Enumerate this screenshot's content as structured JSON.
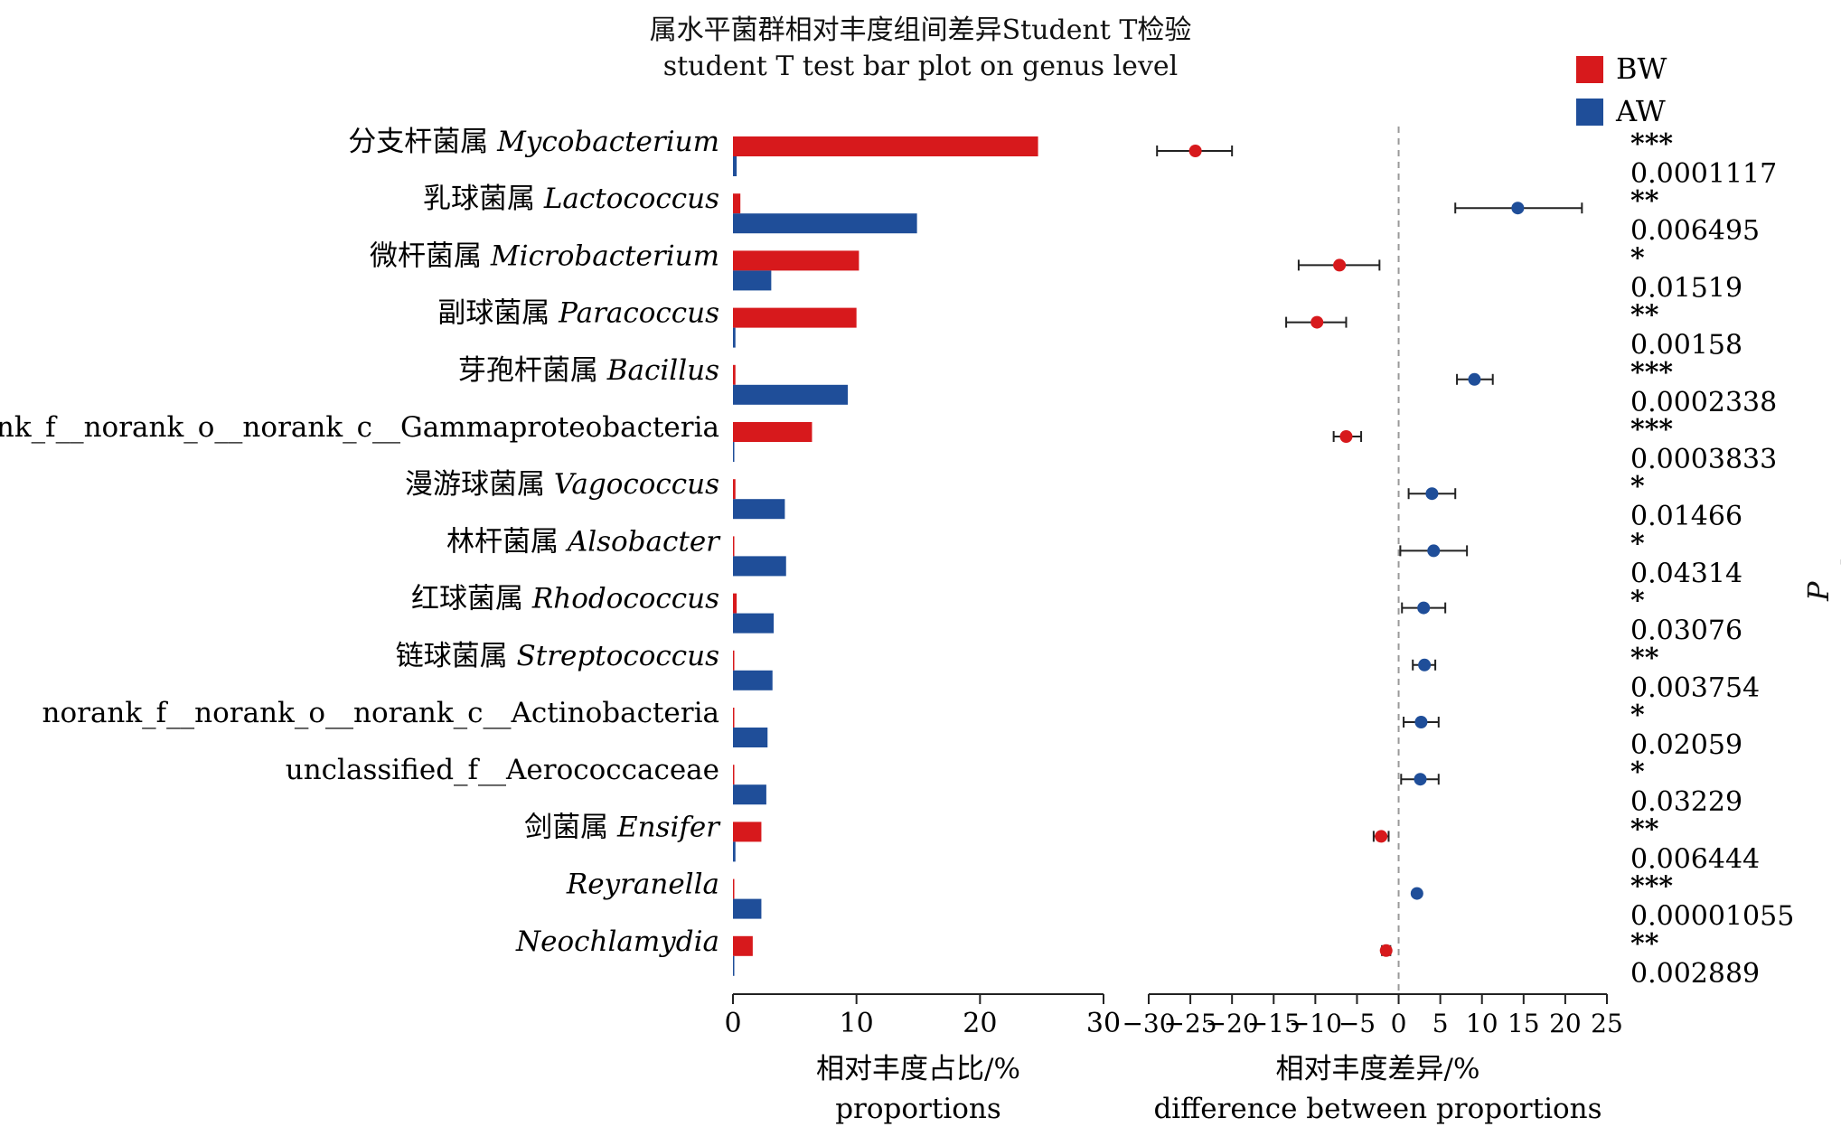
{
  "chart_data": {
    "type": "bar",
    "title": "属水平菌群相对丰度组间差异Student T检验",
    "subtitle": "student T test bar plot on genus level",
    "legend": {
      "placement": "top-right",
      "entries": [
        {
          "name": "BW",
          "color": "#d7191c"
        },
        {
          "name": "AW",
          "color": "#1f4e99"
        }
      ]
    },
    "categories": [
      {
        "cn": "分支杆菌属",
        "latin": "Mycobacterium"
      },
      {
        "cn": "乳球菌属",
        "latin": "Lactococcus"
      },
      {
        "cn": "微杆菌属",
        "latin": "Microbacterium"
      },
      {
        "cn": "副球菌属",
        "latin": "Paracoccus"
      },
      {
        "cn": "芽孢杆菌属",
        "latin": "Bacillus"
      },
      {
        "cn": "",
        "latin": "norank_f__norank_o__norank_c__Gammaproteobacteria",
        "plain": true
      },
      {
        "cn": "漫游球菌属",
        "latin": "Vagococcus"
      },
      {
        "cn": "林杆菌属",
        "latin": "Alsobacter"
      },
      {
        "cn": "红球菌属",
        "latin": "Rhodococcus"
      },
      {
        "cn": "链球菌属",
        "latin": "Streptococcus"
      },
      {
        "cn": "",
        "latin": "norank_f__norank_o__norank_c__Actinobacteria",
        "plain": true
      },
      {
        "cn": "",
        "latin": "unclassified_f__Aerococcaceae",
        "plain": true
      },
      {
        "cn": "剑菌属",
        "latin": "Ensifer"
      },
      {
        "cn": "",
        "latin": "Reyranella"
      },
      {
        "cn": "",
        "latin": "Neochlamydia"
      }
    ],
    "series": [
      {
        "name": "BW",
        "color": "#d7191c",
        "values": [
          24.7,
          0.6,
          10.2,
          10.0,
          0.2,
          6.4,
          0.2,
          0.1,
          0.3,
          0.1,
          0.1,
          0.1,
          2.3,
          0.1,
          1.6
        ]
      },
      {
        "name": "AW",
        "color": "#1f4e99",
        "values": [
          0.3,
          14.9,
          3.1,
          0.2,
          9.3,
          0.1,
          4.2,
          4.3,
          3.3,
          3.2,
          2.8,
          2.7,
          0.2,
          2.3,
          0.1
        ]
      }
    ],
    "left_axis": {
      "xlim": [
        0,
        30
      ],
      "ticks": [
        0,
        10,
        20,
        30
      ],
      "xlabel_cn": "相对丰度占比/%",
      "xlabel_en": "proportions"
    },
    "right_axis": {
      "xlim": [
        -30,
        25
      ],
      "ticks": [
        -30,
        -25,
        -20,
        -15,
        -10,
        -5,
        0,
        5,
        10,
        15,
        20,
        25
      ],
      "xlabel_cn": "相对丰度差异/%",
      "xlabel_en": "difference between proportions"
    },
    "differences": [
      {
        "value": -24.4,
        "ci": [
          -29.0,
          -20.0
        ],
        "group": "BW"
      },
      {
        "value": 14.3,
        "ci": [
          6.8,
          22.0
        ],
        "group": "AW"
      },
      {
        "value": -7.1,
        "ci": [
          -12.0,
          -2.3
        ],
        "group": "BW"
      },
      {
        "value": -9.8,
        "ci": [
          -13.5,
          -6.3
        ],
        "group": "BW"
      },
      {
        "value": 9.1,
        "ci": [
          7.0,
          11.3
        ],
        "group": "AW"
      },
      {
        "value": -6.3,
        "ci": [
          -7.8,
          -4.5
        ],
        "group": "BW"
      },
      {
        "value": 4.0,
        "ci": [
          1.2,
          6.8
        ],
        "group": "AW"
      },
      {
        "value": 4.2,
        "ci": [
          0.2,
          8.2
        ],
        "group": "AW"
      },
      {
        "value": 3.0,
        "ci": [
          0.4,
          5.6
        ],
        "group": "AW"
      },
      {
        "value": 3.1,
        "ci": [
          1.7,
          4.4
        ],
        "group": "AW"
      },
      {
        "value": 2.7,
        "ci": [
          0.6,
          4.8
        ],
        "group": "AW"
      },
      {
        "value": 2.6,
        "ci": [
          0.3,
          4.8
        ],
        "group": "AW"
      },
      {
        "value": -2.1,
        "ci": [
          -3.0,
          -1.2
        ],
        "group": "BW"
      },
      {
        "value": 2.2,
        "ci": [
          2.0,
          2.4
        ],
        "group": "AW"
      },
      {
        "value": -1.5,
        "ci": [
          -2.0,
          -1.0
        ],
        "group": "BW"
      }
    ],
    "significance": [
      "***",
      "**",
      "*",
      "**",
      "***",
      "***",
      "*",
      "*",
      "*",
      "**",
      "*",
      "*",
      "**",
      "***",
      "**"
    ],
    "p_values": [
      "0.0001117",
      "0.006495",
      "0.01519",
      "0.00158",
      "0.0002338",
      "0.0003833",
      "0.01466",
      "0.04314",
      "0.03076",
      "0.003754",
      "0.02059",
      "0.03229",
      "0.006444",
      "0.00001055",
      "0.002889"
    ],
    "p_value_label": "P value",
    "grid": false
  }
}
